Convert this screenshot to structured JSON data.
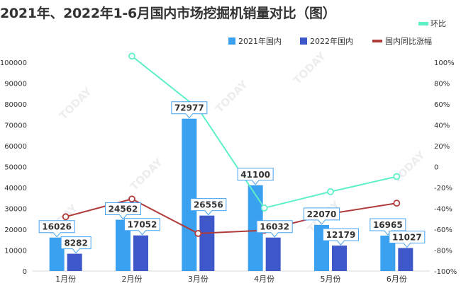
{
  "title": "2021年、2022年1-6月国内市场挖掘机销量对比（图）",
  "watermark": "TODAY",
  "chart_data": {
    "type": "bar",
    "categories": [
      "1月份",
      "2月份",
      "3月份",
      "4月份",
      "5月份",
      "6月份"
    ],
    "series": [
      {
        "name": "2021年国内",
        "type": "bar",
        "axis": "left",
        "color": "#3aa0f0",
        "values": [
          16026,
          24562,
          72977,
          41100,
          22070,
          16965
        ]
      },
      {
        "name": "2022年国内",
        "type": "bar",
        "axis": "left",
        "color": "#3e57c9",
        "values": [
          8282,
          17052,
          26556,
          16032,
          12179,
          11027
        ]
      },
      {
        "name": "国内同比涨幅",
        "type": "line",
        "axis": "right",
        "color": "#b03b3b",
        "values": [
          -48,
          -31,
          -64,
          -61,
          -45,
          -35
        ]
      },
      {
        "name": "环比",
        "type": "line",
        "axis": "right",
        "color": "#5ff0c8",
        "values": [
          null,
          105.9,
          55.7,
          -39.6,
          -24,
          -9.5
        ]
      }
    ],
    "y_left": {
      "range": [
        0,
        100000
      ],
      "ticks": [
        0,
        10000,
        20000,
        30000,
        40000,
        50000,
        60000,
        70000,
        80000,
        90000,
        100000
      ]
    },
    "y_right": {
      "range": [
        -100,
        100
      ],
      "ticks": [
        "-100%",
        "-80%",
        "-60%",
        "-40%",
        "-20%",
        "0",
        "20%",
        "40%",
        "60%",
        "80%",
        "100%"
      ]
    },
    "legend_position": "top-right",
    "grid": false
  }
}
